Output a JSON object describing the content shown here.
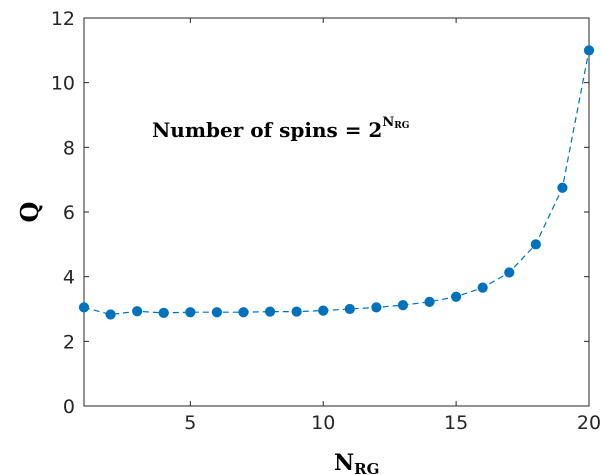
{
  "chart_data": {
    "type": "line",
    "xlabel": {
      "main": "N",
      "sub": "RG"
    },
    "ylabel": "Q",
    "annotation": {
      "text": "Number of spins = 2",
      "superscript": "N",
      "superscript_sub": "RG"
    },
    "xlim": [
      1,
      20
    ],
    "ylim": [
      0,
      12
    ],
    "xticks": [
      5,
      10,
      15,
      20
    ],
    "yticks": [
      0,
      2,
      4,
      6,
      8,
      10,
      12
    ],
    "grid": false,
    "series": [
      {
        "color": "#0072BD",
        "line_style": "dashed",
        "marker": "circle",
        "x": [
          1,
          2,
          3,
          4,
          5,
          6,
          7,
          8,
          9,
          10,
          11,
          12,
          13,
          14,
          15,
          16,
          17,
          18,
          19,
          20
        ],
        "y": [
          3.05,
          2.83,
          2.93,
          2.88,
          2.9,
          2.9,
          2.9,
          2.92,
          2.92,
          2.95,
          3.0,
          3.05,
          3.12,
          3.22,
          3.38,
          3.66,
          4.13,
          5.0,
          6.75,
          11.0
        ]
      }
    ]
  }
}
